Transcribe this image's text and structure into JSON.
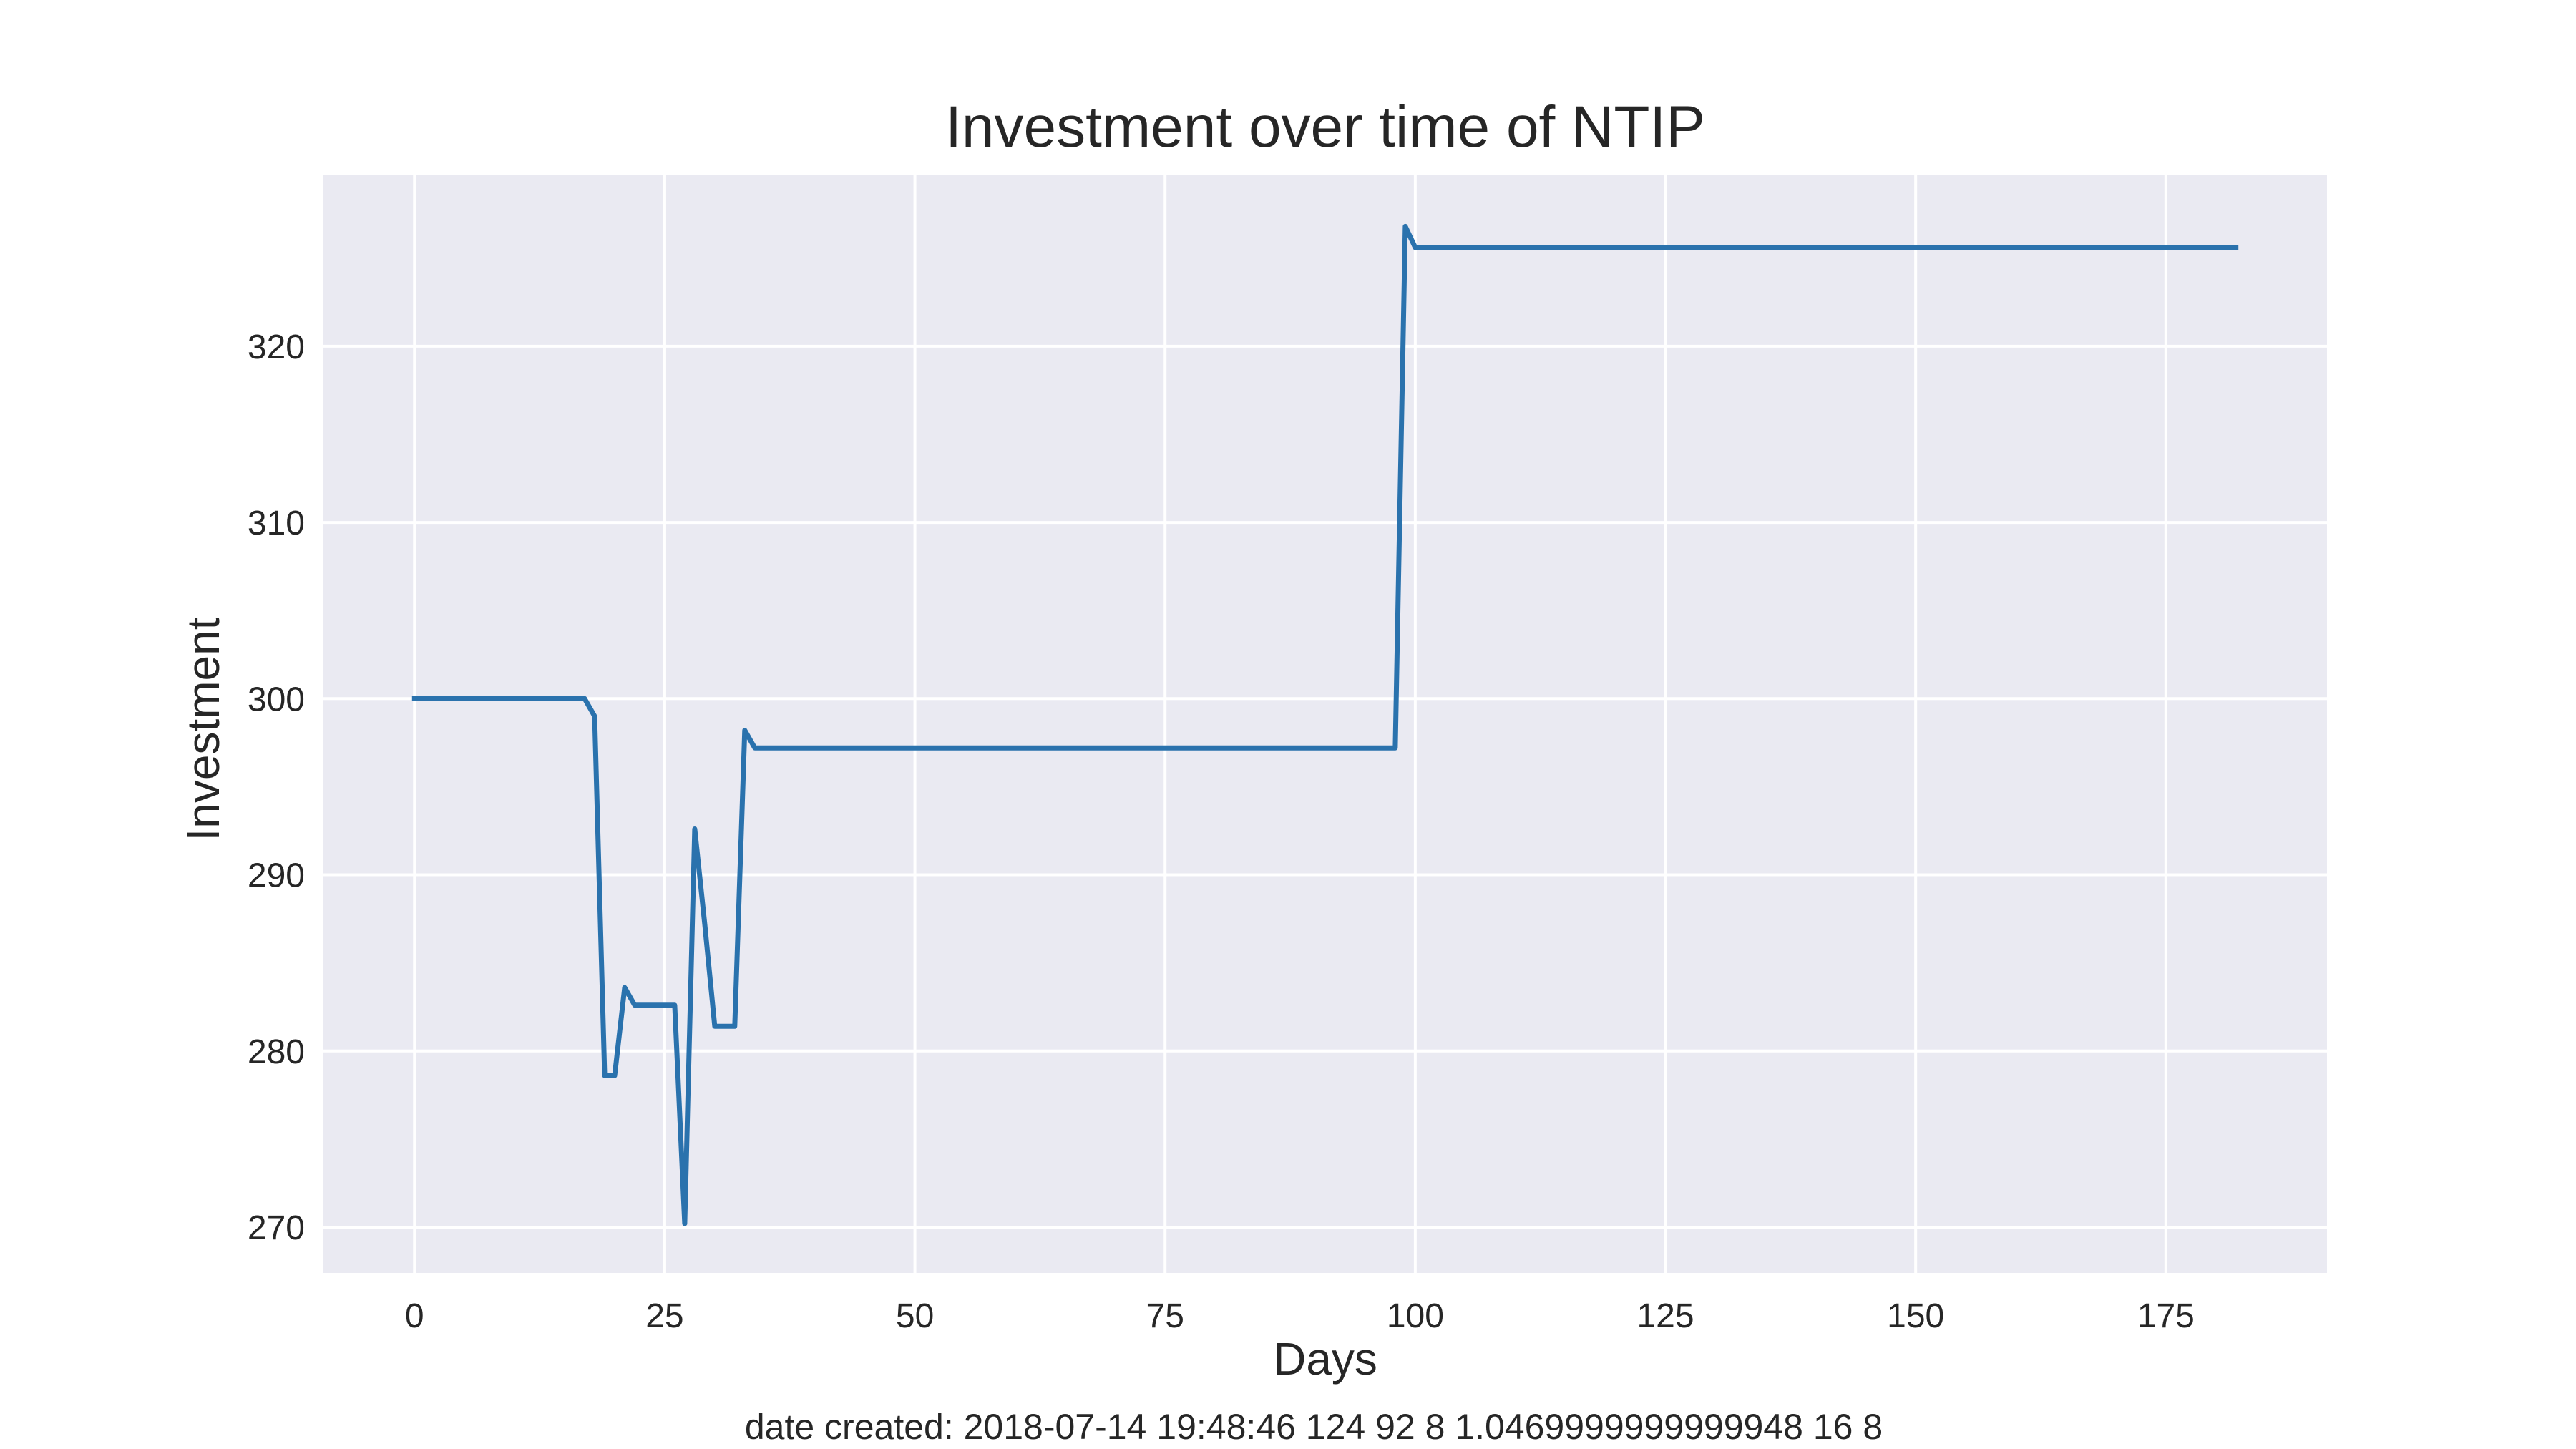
{
  "chart_data": {
    "type": "line",
    "title": "Investment over time of NTIP",
    "xlabel": "Days",
    "ylabel": "Investment",
    "xlim": [
      -9.1,
      191.1
    ],
    "ylim": [
      267.4,
      329.7
    ],
    "xticks": [
      0,
      25,
      50,
      75,
      100,
      125,
      150,
      175
    ],
    "yticks": [
      270,
      280,
      290,
      300,
      310,
      320
    ],
    "grid": true,
    "legend": "none",
    "colors": {
      "line": "#2a72ad",
      "plot_bg": "#eaeaf2",
      "grid": "#ffffff"
    },
    "series": [
      {
        "x": [
          0,
          17,
          18,
          19,
          20,
          21,
          22,
          23,
          24,
          25,
          26,
          27,
          28,
          29,
          30,
          31,
          32,
          33,
          34,
          35,
          60,
          98,
          99,
          100,
          125,
          150,
          182
        ],
        "y": [
          300.0,
          300.0,
          299.0,
          278.6,
          278.6,
          283.6,
          282.6,
          282.6,
          282.6,
          282.6,
          282.6,
          270.2,
          292.6,
          287.2,
          281.4,
          281.4,
          281.4,
          298.2,
          297.2,
          297.2,
          297.2,
          297.2,
          326.8,
          325.6,
          325.6,
          325.6,
          325.6
        ]
      }
    ],
    "footer": "date created: 2018-07-14 19:48:46 124 92 8 1.0469999999999948 16 8"
  }
}
